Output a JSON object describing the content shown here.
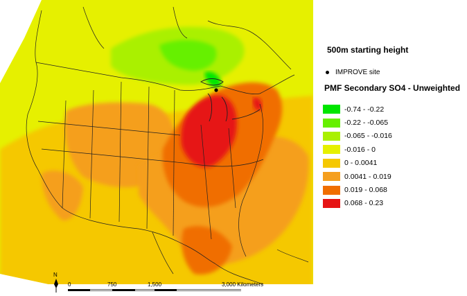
{
  "map": {
    "subtitle": "500m starting height",
    "legend_title": "PMF Secondary SO4 - Unweighted",
    "site_marker": {
      "label": "IMPROVE site",
      "icon": "black-dot-icon"
    },
    "classes": [
      {
        "label": "-0.74 - -0.22",
        "color": "#00e600"
      },
      {
        "label": "-0.22 - -0.065",
        "color": "#66f000"
      },
      {
        "label": "-0.065 - -0.016",
        "color": "#aaf000"
      },
      {
        "label": "-0.016 - 0",
        "color": "#e6f000"
      },
      {
        "label": "0 - 0.0041",
        "color": "#f5c800"
      },
      {
        "label": "0.0041 - 0.019",
        "color": "#f59f1e"
      },
      {
        "label": "0.019 - 0.068",
        "color": "#f06e00"
      },
      {
        "label": "0.068 - 0.23",
        "color": "#e61414"
      }
    ],
    "north_arrow": "N",
    "scale_bar": {
      "ticks": [
        "0",
        "750",
        "1,500"
      ],
      "end_label": "3,000 Kilometers"
    }
  }
}
